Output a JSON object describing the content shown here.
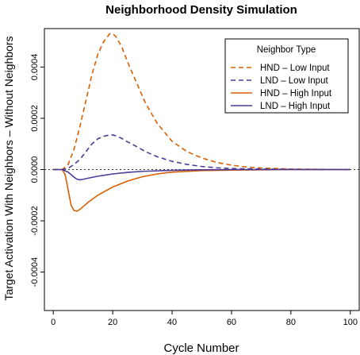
{
  "chart_data": {
    "type": "line",
    "title": "Neighborhood Density Simulation",
    "xlabel": "Cycle Number",
    "ylabel": "Target Activation With Neighbors – Without Neighbors",
    "xlim": [
      -3,
      103
    ],
    "ylim": [
      -0.00055,
      0.00055
    ],
    "x_ticks": [
      0,
      20,
      40,
      60,
      80,
      100
    ],
    "x_tick_labels": [
      "0",
      "20",
      "40",
      "60",
      "80",
      "100"
    ],
    "y_ticks": [
      -0.0004,
      -0.0002,
      0.0,
      0.0002,
      0.0004
    ],
    "y_tick_labels": [
      "-0.0004",
      "-0.0002",
      "0.0000",
      "0.0002",
      "0.0004"
    ],
    "zero_reference_line": true,
    "grid": false,
    "legend": {
      "title": "Neighbor Type",
      "position": "top-right"
    },
    "series": [
      {
        "name": "HND – Low Input",
        "color": "#d95f02",
        "dash": "dashed",
        "x": [
          0,
          3,
          5,
          7,
          9,
          11,
          13,
          15,
          17,
          19,
          20,
          21,
          23,
          25,
          28,
          31,
          35,
          40,
          45,
          50,
          55,
          60,
          65,
          70,
          75,
          80,
          90,
          100
        ],
        "y": [
          0,
          0,
          2e-05,
          8e-05,
          0.00017,
          0.00027,
          0.00037,
          0.00045,
          0.0005,
          0.00053,
          0.00053,
          0.00052,
          0.00048,
          0.00042,
          0.00034,
          0.00026,
          0.00018,
          0.00011,
          7e-05,
          4.5e-05,
          2.8e-05,
          1.7e-05,
          1e-05,
          6e-06,
          4e-06,
          2e-06,
          1e-06,
          0
        ]
      },
      {
        "name": "LND – Low Input",
        "color": "#4b3b9a",
        "dash": "dashed",
        "x": [
          0,
          3,
          5,
          7,
          9,
          11,
          13,
          15,
          17,
          19,
          20,
          21,
          23,
          25,
          28,
          31,
          35,
          40,
          45,
          50,
          55,
          60,
          70,
          80,
          90,
          100
        ],
        "y": [
          0,
          0,
          5e-06,
          2e-05,
          4e-05,
          7e-05,
          0.0001,
          0.00012,
          0.00013,
          0.000135,
          0.000135,
          0.000132,
          0.000122,
          0.000108,
          9e-05,
          7e-05,
          5e-05,
          3.2e-05,
          2e-05,
          1.2e-05,
          7e-06,
          4e-06,
          2e-06,
          1e-06,
          0,
          0
        ]
      },
      {
        "name": "HND – High Input",
        "color": "#d95f02",
        "dash": "solid",
        "x": [
          0,
          3,
          4,
          5,
          6,
          7,
          8,
          9,
          10,
          12,
          15,
          20,
          25,
          30,
          35,
          40,
          50,
          60,
          70,
          80,
          90,
          100
        ],
        "y": [
          0,
          0,
          -2e-05,
          -8e-05,
          -0.00014,
          -0.00016,
          -0.000162,
          -0.000155,
          -0.000145,
          -0.000125,
          -0.0001,
          -6.8e-05,
          -4.5e-05,
          -2.8e-05,
          -1.7e-05,
          -1e-05,
          -4e-06,
          -2e-06,
          -1e-06,
          0,
          0,
          0
        ]
      },
      {
        "name": "LND – High Input",
        "color": "#4b3b9a",
        "dash": "solid",
        "x": [
          0,
          3,
          5,
          7,
          8,
          9,
          10,
          12,
          15,
          20,
          25,
          30,
          40,
          50,
          60,
          70,
          80,
          90,
          100
        ],
        "y": [
          0,
          0,
          -1e-05,
          -3e-05,
          -3.8e-05,
          -4e-05,
          -3.8e-05,
          -3.3e-05,
          -2.6e-05,
          -1.7e-05,
          -1.1e-05,
          -7e-06,
          -3e-06,
          -1e-06,
          0,
          0,
          0,
          0,
          0
        ]
      }
    ]
  }
}
